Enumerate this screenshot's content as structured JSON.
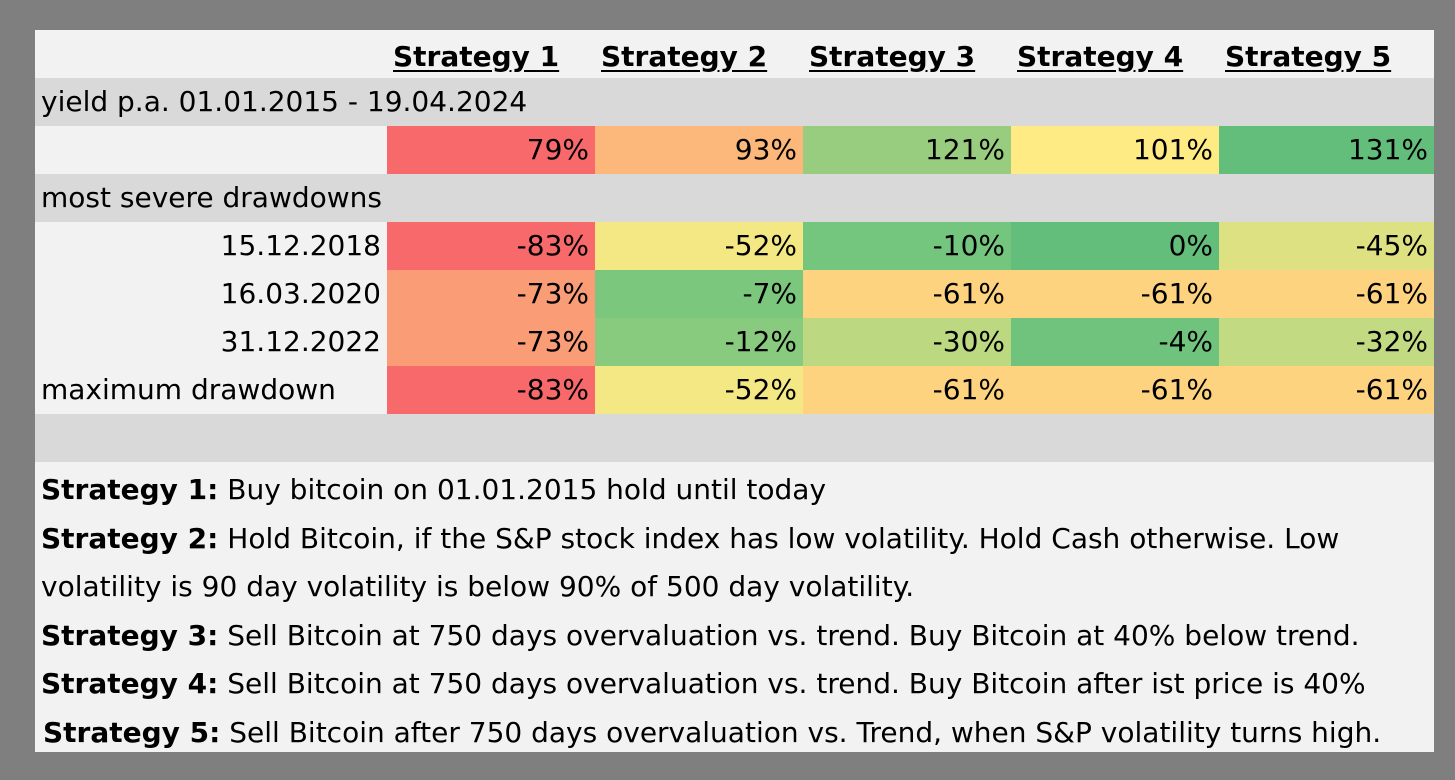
{
  "headers": [
    "Strategy 1",
    "Strategy 2",
    "Strategy 3",
    "Strategy 4",
    "Strategy 5"
  ],
  "yield_section": {
    "label": "yield p.a. 01.01.2015 - 19.04.2024",
    "values": [
      "79%",
      "93%",
      "121%",
      "101%",
      "131%"
    ],
    "colors": [
      "#f8696b",
      "#fcb77a",
      "#98cc7f",
      "#ffeb84",
      "#63be7b"
    ]
  },
  "drawdown_section": {
    "label": "most severe drawdowns",
    "rows": [
      {
        "date": "15.12.2018",
        "values": [
          "-83%",
          "-52%",
          "-10%",
          "0%",
          "-45%"
        ],
        "colors": [
          "#f8696b",
          "#f4e884",
          "#74c57d",
          "#63be7b",
          "#dee182"
        ]
      },
      {
        "date": "16.03.2020",
        "values": [
          "-73%",
          "-7%",
          "-61%",
          "-61%",
          "-61%"
        ],
        "colors": [
          "#fa9c76",
          "#7cc77e",
          "#fed380",
          "#fed380",
          "#fed380"
        ]
      },
      {
        "date": "31.12.2022",
        "values": [
          "-73%",
          "-12%",
          "-30%",
          "-4%",
          "-32%"
        ],
        "colors": [
          "#fa9c76",
          "#88ca7e",
          "#bcd881",
          "#70c37c",
          "#c2da81"
        ]
      }
    ],
    "max": {
      "label": "maximum drawdown",
      "values": [
        "-83%",
        "-52%",
        "-61%",
        "-61%",
        "-61%"
      ],
      "colors": [
        "#f8696b",
        "#f3e884",
        "#fed380",
        "#fed380",
        "#fed380"
      ]
    }
  },
  "notes": [
    {
      "bold": "Strategy 1:",
      "text": " Buy bitcoin on 01.01.2015 hold until today"
    },
    {
      "bold": "Strategy 2:",
      "text": " Hold Bitcoin, if the S&P stock index has low volatility. Hold Cash otherwise. Low",
      "cont": "volatility is 90 day volatility is below 90% of 500 day volatility."
    },
    {
      "bold": "Strategy 3:",
      "text": " Sell Bitcoin at 750 days overvaluation vs. trend. Buy Bitcoin at 40% below trend."
    },
    {
      "bold": "Strategy 4:",
      "text": " Sell Bitcoin at 750 days overvaluation vs. trend. Buy Bitcoin after ist price is 40%"
    },
    {
      "bold": "Strategy 5:",
      "text": " Sell Bitcoin after 750 days overvaluation vs. Trend, when S&P volatility turns high."
    }
  ]
}
